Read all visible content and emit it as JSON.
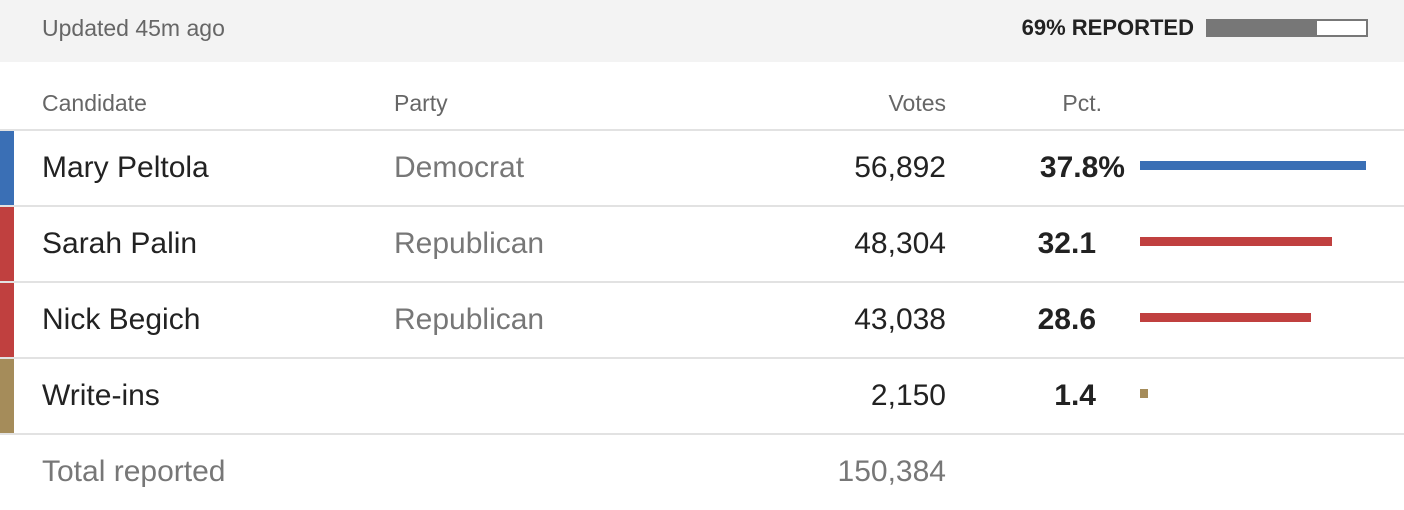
{
  "header": {
    "updated": "Updated 45m ago",
    "reported_label": "69% REPORTED",
    "reported_pct": 69
  },
  "table": {
    "columns": [
      "Candidate",
      "Party",
      "Votes",
      "Pct."
    ],
    "rows": [
      {
        "candidate": "Mary Peltola",
        "party": "Democrat",
        "votes": "56,892",
        "pct": 37.8,
        "pct_label": "37.8%",
        "color": "#3a6fb5"
      },
      {
        "candidate": "Sarah Palin",
        "party": "Republican",
        "votes": "48,304",
        "pct": 32.1,
        "color": "#c0403f"
      },
      {
        "candidate": "Nick Begich",
        "party": "Republican",
        "votes": "43,038",
        "pct": 28.6,
        "color": "#c0403f"
      },
      {
        "candidate": "Write-ins",
        "votes": "2,150",
        "pct": 1.4,
        "color": "#a58c5a"
      }
    ],
    "total": {
      "label": "Total reported",
      "votes": "150,384"
    }
  }
}
